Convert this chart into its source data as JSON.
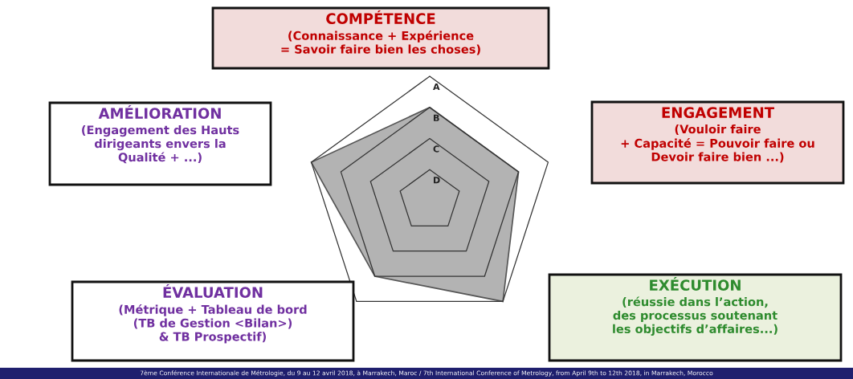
{
  "chart_data": {
    "type": "radar",
    "categories": [
      "COMPÉTENCE\n(Connaissance + Expérience\n= Savoir faire bien les choses)",
      "ENGAGEMENT\n(Vouloir faire\n+ Capacité = Pouvoir faire ou\nDevoir faire bien ...)",
      "EXÉCUTION\n(réussie dans l’action,\ndes processus soutenant\nles objectifs d’affaires...)",
      "ÉVALUATION\n(Métrique + Tableau de bord\n(TB de Gestion <Bilan>)\n& TB Prospectif)",
      "AMÉLIORATION\n(Engagement des Hauts\ndirigeants envers la\nQualité + ...)"
    ],
    "series": [
      {
        "color": "#b3b3b3",
        "values": [
          3,
          3,
          4,
          3,
          4
        ]
      }
    ],
    "ylim": [
      0,
      4
    ],
    "yticks": [
      {
        "value": 1,
        "label": "D"
      },
      {
        "value": 2,
        "label": "C"
      },
      {
        "value": 3,
        "label": "B"
      },
      {
        "value": 4,
        "label": "A"
      }
    ],
    "annotations": [
      "7ème Conférence Internationale de Métrologie, du 9 au 12 avril 2018, à Marrakech, Maroc / 7th International Conference of Metrology, from April 9th to 12th 2018, in Marrakech, Morocco"
    ]
  }
}
